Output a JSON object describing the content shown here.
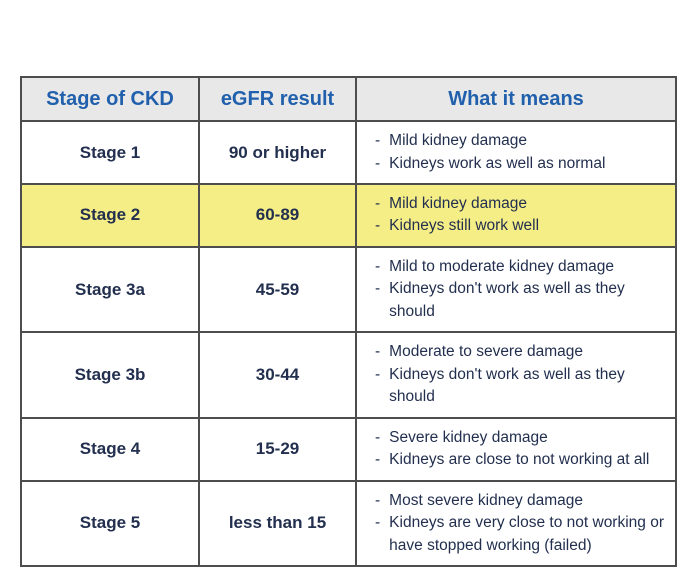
{
  "chart_data": {
    "type": "table",
    "title": "",
    "columns": [
      "Stage of CKD",
      "eGFR result",
      "What it means"
    ],
    "bullet_char": "-",
    "highlighted_row_stage": "Stage 2",
    "rows": [
      {
        "stage": "Stage 1",
        "egfr": "90 or higher",
        "meaning": [
          "Mild kidney damage",
          "Kidneys work as well as normal"
        ]
      },
      {
        "stage": "Stage 2",
        "egfr": "60-89",
        "meaning": [
          "Mild kidney damage",
          "Kidneys still work well"
        ]
      },
      {
        "stage": "Stage 3a",
        "egfr": "45-59",
        "meaning": [
          "Mild to moderate kidney damage",
          "Kidneys don't work as well as they should"
        ]
      },
      {
        "stage": "Stage 3b",
        "egfr": "30-44",
        "meaning": [
          "Moderate to severe damage",
          "Kidneys don't work as well as they should"
        ]
      },
      {
        "stage": "Stage 4",
        "egfr": "15-29",
        "meaning": [
          "Severe kidney damage",
          "Kidneys are close to not working at all"
        ]
      },
      {
        "stage": "Stage 5",
        "egfr": "less than 15",
        "meaning": [
          "Most severe kidney damage",
          "Kidneys are very close to not working or have stopped working (failed)"
        ]
      }
    ]
  },
  "colors": {
    "page_bg": "#ffffff",
    "header_bg": "#e8e8e8",
    "header_text": "#2160ac",
    "body_text": "#222f4e",
    "highlight_bg": "#f5ee86",
    "border": "#4d4d4d"
  }
}
